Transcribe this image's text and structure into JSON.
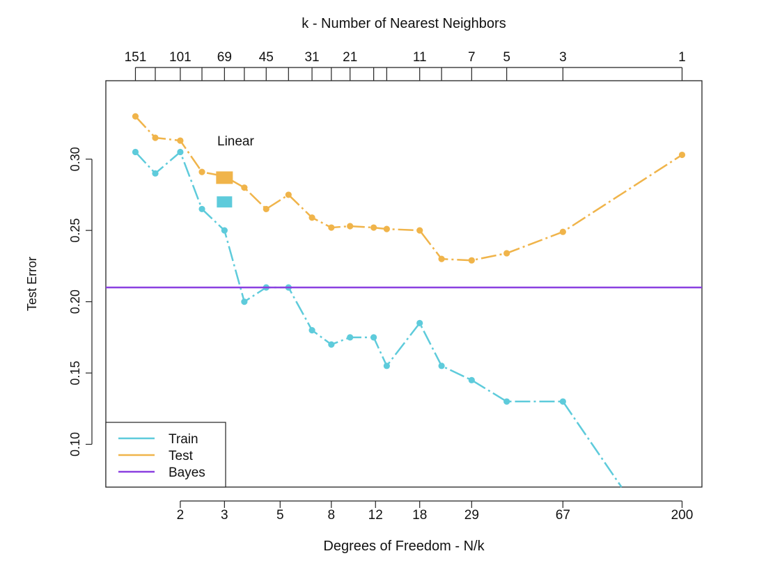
{
  "chart_data": {
    "type": "line",
    "top_axis_label": "k -  Number of Nearest Neighbors",
    "xlabel": "Degrees of Freedom - N/k",
    "ylabel": "Test Error",
    "x_scale": "log",
    "xlim": [
      1.01,
      240
    ],
    "ylim": [
      0.07,
      0.355
    ],
    "bottom_ticks": [
      2,
      3,
      5,
      8,
      12,
      18,
      29,
      67,
      200
    ],
    "bottom_tick_labels": [
      "2",
      "3",
      "5",
      "8",
      "12",
      "18",
      "29",
      "67",
      "200"
    ],
    "top_ticks": [
      151,
      101,
      69,
      45,
      31,
      21,
      11,
      7,
      5,
      3,
      1
    ],
    "top_tick_labels": [
      "151",
      "101",
      "69",
      "45",
      "31",
      "21",
      "11",
      "7",
      "5",
      "3",
      "1"
    ],
    "top_tick_positions_df": [
      1.325,
      1.59,
      2.0,
      2.44,
      3.0,
      3.6,
      4.4,
      5.4,
      6.7,
      8.0,
      9.5,
      11.8,
      13.3,
      18.0,
      22.0,
      29.0,
      40.0,
      67.0,
      200.0
    ],
    "y_ticks": [
      0.1,
      0.15,
      0.2,
      0.25,
      0.3
    ],
    "y_tick_labels": [
      "0.10",
      "0.15",
      "0.20",
      "0.25",
      "0.30"
    ],
    "series": [
      {
        "name": "Train",
        "color": "#5ecbdb",
        "style": "dash-dot",
        "x": [
          1.325,
          1.59,
          2.0,
          2.44,
          3.0,
          3.6,
          4.4,
          5.4,
          6.7,
          8.0,
          9.5,
          11.8,
          13.3,
          18.0,
          22.0,
          29.0,
          40.0,
          67.0,
          120.0
        ],
        "y": [
          0.305,
          0.29,
          0.305,
          0.265,
          0.25,
          0.2,
          0.21,
          0.21,
          0.18,
          0.17,
          0.175,
          0.175,
          0.155,
          0.185,
          0.155,
          0.145,
          0.13,
          0.13,
          0.065
        ]
      },
      {
        "name": "Test",
        "color": "#f0b44a",
        "style": "dash-dot",
        "x": [
          1.325,
          1.59,
          2.0,
          2.44,
          3.0,
          3.6,
          4.4,
          5.4,
          6.7,
          8.0,
          9.5,
          11.8,
          13.3,
          18.0,
          22.0,
          29.0,
          40.0,
          67.0,
          200.0
        ],
        "y": [
          0.33,
          0.315,
          0.313,
          0.291,
          0.288,
          0.28,
          0.265,
          0.275,
          0.259,
          0.252,
          0.253,
          0.252,
          0.251,
          0.25,
          0.23,
          0.229,
          0.234,
          0.249,
          0.303
        ]
      },
      {
        "name": "Bayes",
        "color": "#8a3fe0",
        "style": "solid",
        "y": 0.21
      }
    ],
    "linear": {
      "label": "Linear",
      "x": 3.0,
      "test_error": 0.287,
      "train_error": 0.27,
      "test_color": "#f0b44a",
      "train_color": "#5ecbdb"
    },
    "legend": {
      "placement": "bottom-left",
      "entries": [
        "Train",
        "Test",
        "Bayes"
      ]
    }
  }
}
